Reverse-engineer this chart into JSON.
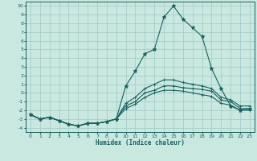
{
  "xlabel": "Humidex (Indice chaleur)",
  "bg_color": "#c8e8e0",
  "grid_color": "#a8cec8",
  "line_color": "#1a6060",
  "xlim": [
    -0.5,
    23.5
  ],
  "ylim": [
    -4.5,
    10.5
  ],
  "xticks": [
    0,
    1,
    2,
    3,
    4,
    5,
    6,
    7,
    8,
    9,
    10,
    11,
    12,
    13,
    14,
    15,
    16,
    17,
    18,
    19,
    20,
    21,
    22,
    23
  ],
  "yticks": [
    -4,
    -3,
    -2,
    -1,
    0,
    1,
    2,
    3,
    4,
    5,
    6,
    7,
    8,
    9,
    10
  ],
  "lines": [
    {
      "x": [
        0,
        1,
        2,
        3,
        4,
        5,
        6,
        7,
        8,
        9,
        10,
        11,
        12,
        13,
        14,
        15,
        16,
        17,
        18,
        19,
        20,
        21,
        22,
        23
      ],
      "y": [
        -2.5,
        -3.0,
        -2.8,
        -3.2,
        -3.6,
        -3.8,
        -3.5,
        -3.5,
        -3.3,
        -3.0,
        0.8,
        2.5,
        4.5,
        5.0,
        8.7,
        10.0,
        8.5,
        7.5,
        6.5,
        2.8,
        0.5,
        -1.5,
        -2.0,
        -1.8
      ],
      "marker": "*",
      "ms": 3.5
    },
    {
      "x": [
        0,
        1,
        2,
        3,
        4,
        5,
        6,
        7,
        8,
        9,
        10,
        11,
        12,
        13,
        14,
        15,
        16,
        17,
        18,
        19,
        20,
        21,
        22,
        23
      ],
      "y": [
        -2.5,
        -3.0,
        -2.8,
        -3.2,
        -3.6,
        -3.8,
        -3.5,
        -3.5,
        -3.3,
        -3.0,
        -1.2,
        -0.5,
        0.5,
        1.0,
        1.5,
        1.5,
        1.2,
        1.0,
        0.8,
        0.5,
        -0.5,
        -0.8,
        -1.5,
        -1.5
      ],
      "marker": "+",
      "ms": 3.0
    },
    {
      "x": [
        0,
        1,
        2,
        3,
        4,
        5,
        6,
        7,
        8,
        9,
        10,
        11,
        12,
        13,
        14,
        15,
        16,
        17,
        18,
        19,
        20,
        21,
        22,
        23
      ],
      "y": [
        -2.5,
        -3.0,
        -2.8,
        -3.2,
        -3.6,
        -3.8,
        -3.5,
        -3.5,
        -3.3,
        -3.0,
        -1.5,
        -1.0,
        0.0,
        0.3,
        0.8,
        0.8,
        0.6,
        0.5,
        0.4,
        0.2,
        -0.8,
        -1.0,
        -1.8,
        -1.8
      ],
      "marker": "+",
      "ms": 3.0
    },
    {
      "x": [
        0,
        1,
        2,
        3,
        4,
        5,
        6,
        7,
        8,
        9,
        10,
        11,
        12,
        13,
        14,
        15,
        16,
        17,
        18,
        19,
        20,
        21,
        22,
        23
      ],
      "y": [
        -2.5,
        -3.0,
        -2.8,
        -3.2,
        -3.6,
        -3.8,
        -3.5,
        -3.5,
        -3.3,
        -3.0,
        -1.8,
        -1.3,
        -0.5,
        0.0,
        0.3,
        0.3,
        0.2,
        0.0,
        -0.2,
        -0.4,
        -1.2,
        -1.4,
        -2.0,
        -2.0
      ],
      "marker": "+",
      "ms": 3.0
    }
  ]
}
